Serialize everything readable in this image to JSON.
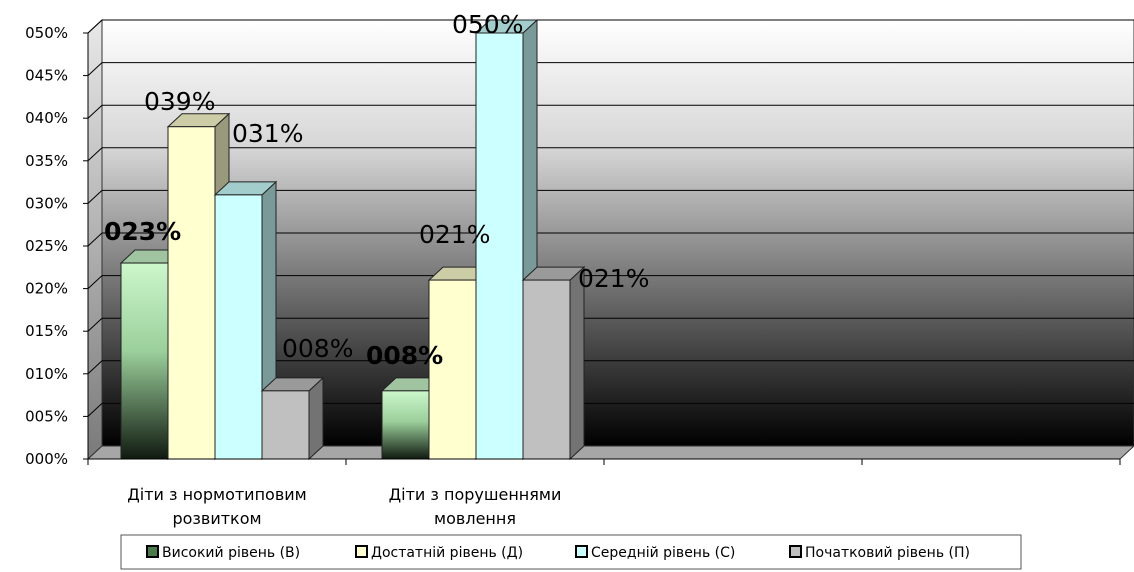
{
  "chart_data": {
    "type": "bar",
    "style": "3d-clustered-column",
    "categories": [
      "Діти з нормотиповим розвитком",
      "Діти з порушеннями мовлення"
    ],
    "category_lines": [
      [
        "Діти з нормотиповим",
        "розвитком"
      ],
      [
        "Діти з порушеннями",
        "мовлення"
      ]
    ],
    "series": [
      {
        "name": "Високий рівень (В)",
        "values": [
          23,
          8
        ],
        "labels": [
          "023%",
          "008%"
        ],
        "label_bold": true,
        "color": "#c8f5c8"
      },
      {
        "name": "Достатній рівень (Д)",
        "values": [
          39,
          21
        ],
        "labels": [
          "039%",
          "021%"
        ],
        "label_bold": false,
        "color": "#ffffd0"
      },
      {
        "name": "Середній рівень (С)",
        "values": [
          31,
          50
        ],
        "labels": [
          "031%",
          "050%"
        ],
        "label_bold": false,
        "color": "#ccffff"
      },
      {
        "name": "Початковий рівень (П)",
        "values": [
          8,
          21
        ],
        "labels": [
          "008%",
          "021%"
        ],
        "label_bold": false,
        "color": "#c0c0c0"
      }
    ],
    "y_ticks": [
      "000%",
      "005%",
      "010%",
      "015%",
      "020%",
      "025%",
      "030%",
      "035%",
      "040%",
      "045%",
      "050%"
    ],
    "ylim": [
      0,
      50
    ],
    "grid": true,
    "legend_position": "bottom",
    "background": "black-gradient"
  }
}
